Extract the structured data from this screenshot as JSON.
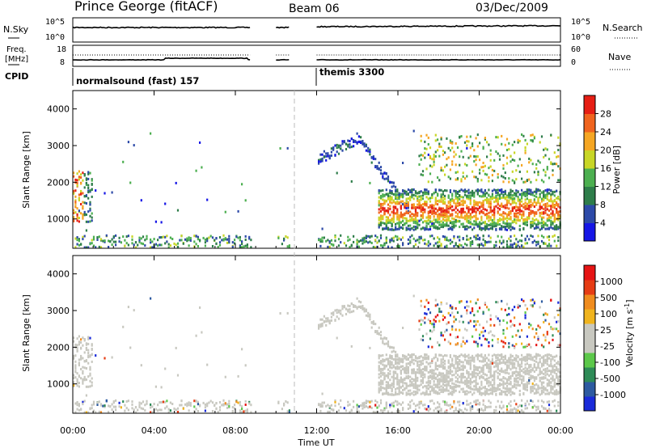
{
  "header": {
    "station": "Prince George (fitACF)",
    "beam": "Beam 06",
    "date": "03/Dec/2009"
  },
  "status_panels": {
    "nsky": {
      "label": "N.Sky",
      "ticks": [
        "10^5",
        "10^0"
      ]
    },
    "nsearch": {
      "label": "N.Search",
      "ticks": [
        "10^5",
        "10^0"
      ]
    },
    "freq": {
      "label_line1": "Freq.",
      "label_line2": "[MHz]",
      "ticks": [
        "18",
        "8"
      ]
    },
    "nave": {
      "label": "Nave",
      "ticks": [
        "60",
        "0"
      ]
    },
    "cpid": {
      "label": "CPID",
      "modes": [
        {
          "name": "normalsound (fast) 157",
          "start_h": 0,
          "end_h": 12
        },
        {
          "name": "themis 3300",
          "start_h": 12,
          "end_h": 24
        }
      ]
    }
  },
  "chart_data": [
    {
      "type": "heatmap",
      "name": "power",
      "xlabel": "Time UT",
      "ylabel": "Slant Range [km]",
      "x_range_h": [
        0,
        24
      ],
      "x_ticks": [
        "00:00",
        "04:00",
        "08:00",
        "12:00",
        "16:00",
        "20:00",
        "00:00"
      ],
      "y_range_km": [
        200,
        4500
      ],
      "y_ticks": [
        1000,
        2000,
        3000,
        4000
      ],
      "colorbar": {
        "label": "Power [dB]",
        "ticks": [
          4,
          8,
          12,
          16,
          20,
          24,
          28
        ],
        "range": [
          0,
          32
        ],
        "colors": [
          "#1616e6",
          "#2d4aa8",
          "#2e7d4a",
          "#4caf50",
          "#c8d626",
          "#f5a623",
          "#f0641e",
          "#e61e14"
        ]
      },
      "data_gaps_h": [
        [
          8.8,
          10.0
        ],
        [
          10.7,
          12.0
        ]
      ],
      "features": [
        {
          "desc": "near-range scatter band",
          "x_h": [
            0,
            24
          ],
          "range_km": [
            200,
            500
          ]
        },
        {
          "desc": "early echoes",
          "x_h": [
            0,
            0.9
          ],
          "range_km": [
            900,
            2400
          ],
          "power_db": [
            14,
            28
          ]
        },
        {
          "desc": "main arc",
          "x_h": [
            14.5,
            24
          ],
          "range_km": [
            800,
            1800
          ],
          "power_db": [
            16,
            30
          ]
        },
        {
          "desc": "upper arc",
          "x_h": [
            12,
            14.5
          ],
          "range_km": [
            2300,
            3300
          ],
          "power_db": [
            4,
            10
          ]
        },
        {
          "desc": "far range scatter",
          "x_h": [
            17,
            24
          ],
          "range_km": [
            2000,
            3300
          ],
          "power_db": [
            8,
            24
          ]
        }
      ]
    },
    {
      "type": "heatmap",
      "name": "velocity",
      "xlabel": "Time UT",
      "ylabel": "Slant Range [km]",
      "x_range_h": [
        0,
        24
      ],
      "x_ticks": [
        "00:00",
        "04:00",
        "08:00",
        "12:00",
        "16:00",
        "20:00",
        "00:00"
      ],
      "y_range_km": [
        200,
        4500
      ],
      "y_ticks": [
        1000,
        2000,
        3000,
        4000
      ],
      "colorbar": {
        "label": "Velocity [m s^-1]",
        "ticks": [
          "1000",
          "500",
          "100",
          "25",
          "-25",
          "-100",
          "-500",
          "-1000"
        ],
        "colors": [
          "#1a2bd9",
          "#2d5aa0",
          "#2e8b57",
          "#5cc84a",
          "#c8c8c0",
          "#c8c8c0",
          "#f0b41e",
          "#f08c1e",
          "#e63c14",
          "#e61414"
        ]
      },
      "data_gaps_h": [
        [
          8.8,
          10.0
        ],
        [
          10.7,
          12.0
        ]
      ],
      "features": [
        {
          "desc": "ground scatter (low velocity)",
          "x_h": [
            15.5,
            24
          ],
          "range_km": [
            600,
            1800
          ],
          "velocity": [
            -25,
            25
          ]
        },
        {
          "desc": "early ground scatter",
          "x_h": [
            0,
            0.7
          ],
          "range_km": [
            700,
            2000
          ],
          "velocity": [
            -25,
            25
          ]
        }
      ]
    }
  ]
}
